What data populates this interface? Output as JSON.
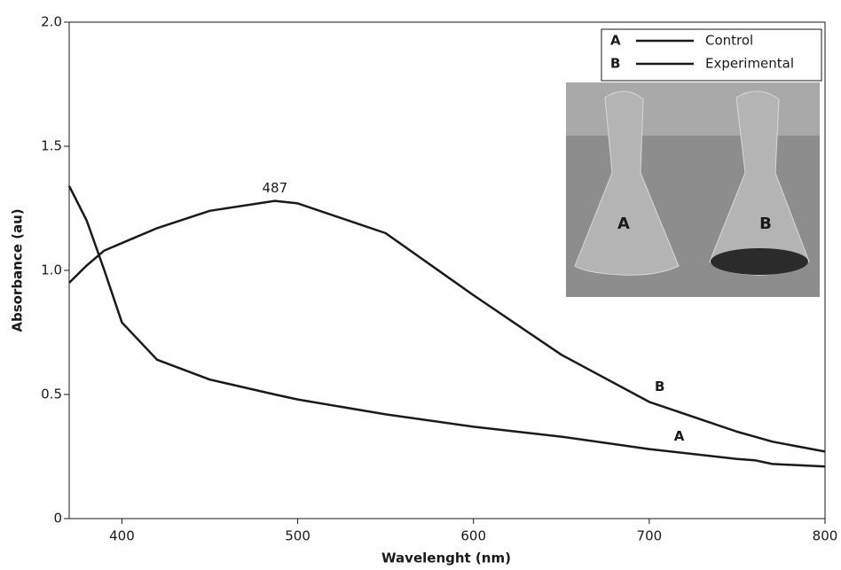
{
  "chart_data": {
    "type": "line",
    "xlabel": "Wavelenght (nm)",
    "ylabel": "Absorbance (au)",
    "xlim": [
      370,
      800
    ],
    "xticks": [
      400,
      500,
      600,
      700,
      800
    ],
    "ylim": [
      0,
      2
    ],
    "yticks": [
      0,
      0.5,
      {
        "value": 1,
        "label": "1.0"
      },
      1.5,
      {
        "value": 2,
        "label": "2.0"
      }
    ],
    "x": [
      370,
      380,
      390,
      400,
      420,
      450,
      487,
      500,
      550,
      600,
      650,
      700,
      750,
      760,
      770,
      800
    ],
    "series": [
      {
        "name": "Control",
        "label": "A",
        "color": "#1a1a1a",
        "values": [
          1.34,
          1.2,
          1.0,
          0.79,
          0.64,
          0.56,
          0.5,
          0.48,
          0.42,
          0.37,
          0.33,
          0.28,
          0.24,
          0.235,
          0.22,
          0.21
        ]
      },
      {
        "name": "Experimental",
        "label": "B",
        "color": "#1a1a1a",
        "values": [
          0.95,
          1.02,
          1.08,
          1.11,
          1.17,
          1.24,
          1.28,
          1.27,
          1.15,
          0.9,
          0.66,
          0.47,
          0.35,
          0.33,
          0.31,
          0.27
        ]
      }
    ],
    "peak_label": {
      "x": 487,
      "y": 1.28,
      "text": "487"
    },
    "curve_labels": [
      {
        "series": 0,
        "x": 717,
        "y": 0.33
      },
      {
        "series": 1,
        "x": 706,
        "y": 0.53
      }
    ]
  }
}
